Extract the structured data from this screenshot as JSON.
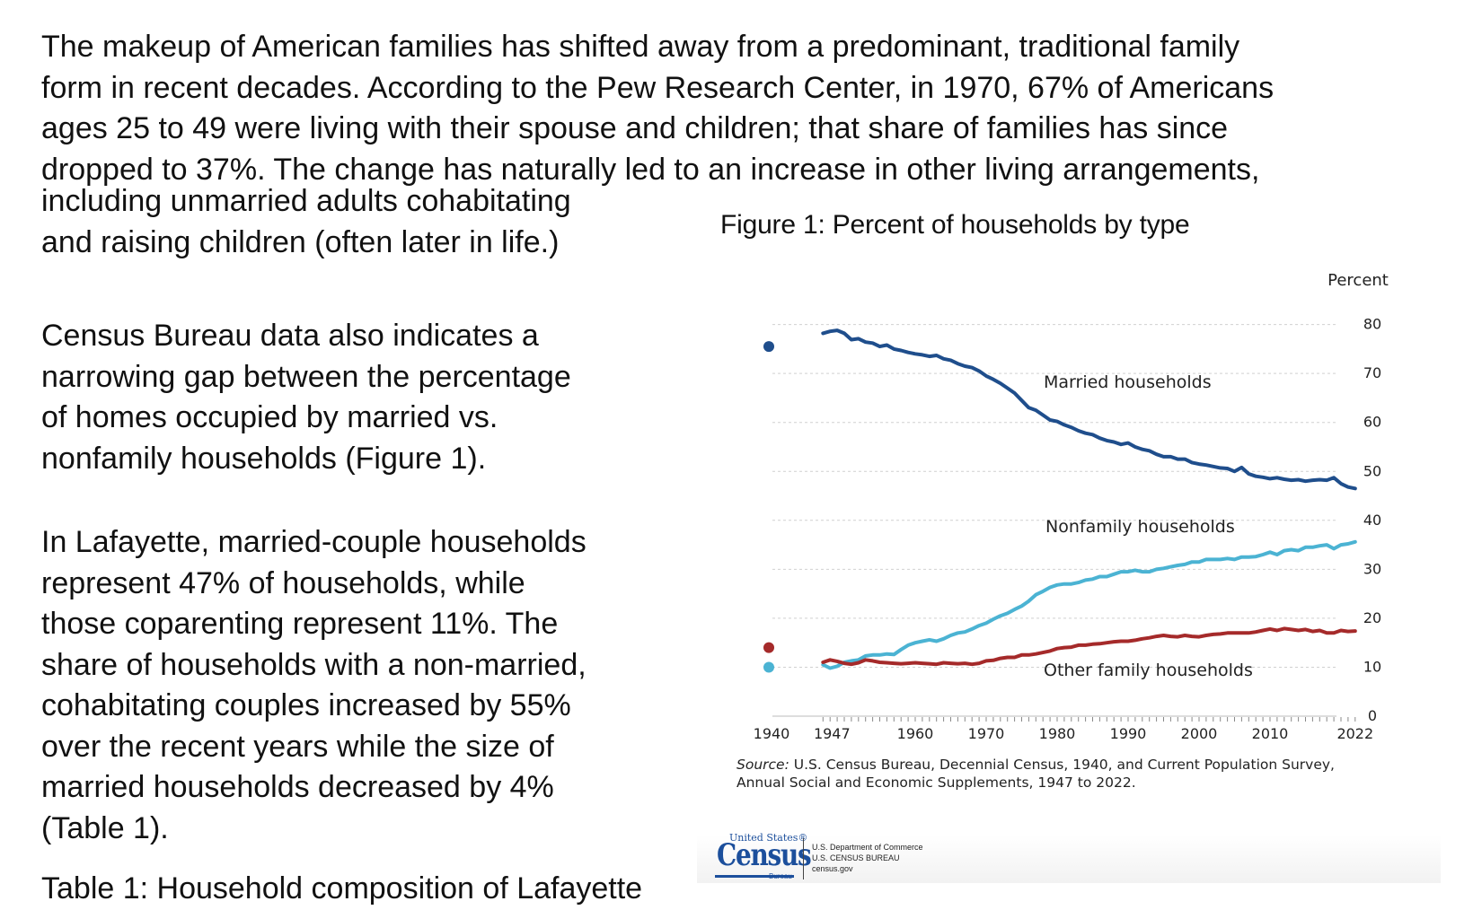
{
  "intro_lines": [
    "The makeup of American families has shifted away from a predominant, traditional family",
    "form in recent decades. According to the Pew Research Center, in 1970, 67% of Americans",
    "ages 25 to 49 were living with their spouse and children; that share of families has since",
    "dropped to 37%. The change has naturally led to an increase in other living arrangements,"
  ],
  "para1_lines": [
    "including unmarried adults cohabitating",
    "and raising children (often later in life.)"
  ],
  "para2_lines": [
    "Census Bureau data also indicates a",
    "narrowing gap between the percentage",
    "of homes occupied by married vs.",
    "nonfamily households (Figure 1)."
  ],
  "para3_lines": [
    "In Lafayette, married-couple households",
    "represent 47% of households, while",
    "those coparenting represent 11%. The",
    "share of households with a non-married,",
    "cohabitating couples increased by 55%",
    "over the recent years while the size of",
    "married households decreased by 4%",
    "(Table 1)."
  ],
  "cut_line": "Table 1: Household composition of Lafayette",
  "figure": {
    "title": "Figure 1: Percent of households by type",
    "source_label": "Source:",
    "source_text": " U.S. Census Bureau, Decennial Census, 1940, and Current Population Survey, Annual Social and Economic Supplements, 1947 to 2022.",
    "logo": {
      "top_text": "United States®",
      "word": "Census",
      "bureau": "Bureau",
      "dept_lines": [
        "U.S. Department of Commerce",
        "U.S. CENSUS BUREAU",
        "census.gov"
      ]
    }
  },
  "chart_data": {
    "type": "line",
    "ylabel": "Percent",
    "ylim": [
      0,
      80
    ],
    "y_ticks": [
      0,
      10,
      20,
      30,
      40,
      50,
      60,
      70,
      80
    ],
    "x_tick_labels": [
      "1940",
      "1947",
      "1960",
      "1970",
      "1980",
      "1990",
      "2000",
      "2010",
      "2022"
    ],
    "grid": true,
    "colors": {
      "married": "#1f4e8c",
      "nonfamily": "#4bb3d3",
      "other": "#a52a2a"
    },
    "series": [
      {
        "name": "Married households",
        "color": "#1f4e8c",
        "point_1940": 75.5,
        "x": [
          1947,
          1948,
          1949,
          1950,
          1951,
          1952,
          1953,
          1954,
          1955,
          1956,
          1957,
          1958,
          1959,
          1960,
          1961,
          1962,
          1963,
          1964,
          1965,
          1966,
          1967,
          1968,
          1969,
          1970,
          1971,
          1972,
          1973,
          1974,
          1975,
          1976,
          1977,
          1978,
          1979,
          1980,
          1981,
          1982,
          1983,
          1984,
          1985,
          1986,
          1987,
          1988,
          1989,
          1990,
          1991,
          1992,
          1993,
          1994,
          1995,
          1996,
          1997,
          1998,
          1999,
          2000,
          2001,
          2002,
          2003,
          2004,
          2005,
          2006,
          2007,
          2008,
          2009,
          2010,
          2011,
          2012,
          2013,
          2014,
          2015,
          2016,
          2017,
          2018,
          2019,
          2020,
          2021,
          2022
        ],
        "values": [
          78.2,
          78.6,
          78.8,
          78.2,
          76.9,
          77.1,
          76.4,
          76.2,
          75.5,
          75.8,
          75.0,
          74.7,
          74.3,
          74.0,
          73.8,
          73.5,
          73.7,
          73.0,
          72.7,
          72.0,
          71.5,
          71.2,
          70.5,
          69.5,
          68.8,
          68.0,
          67.0,
          66.0,
          64.5,
          63.0,
          62.5,
          61.5,
          60.5,
          60.2,
          59.5,
          59.0,
          58.3,
          57.8,
          57.5,
          56.8,
          56.3,
          56.0,
          55.5,
          55.8,
          55.0,
          54.5,
          54.2,
          53.5,
          53.0,
          53.0,
          52.5,
          52.5,
          51.8,
          51.5,
          51.3,
          51.0,
          50.7,
          50.6,
          50.0,
          50.8,
          49.5,
          49.0,
          48.8,
          48.5,
          48.7,
          48.4,
          48.2,
          48.3,
          48.0,
          48.2,
          48.3,
          48.2,
          48.7,
          47.5,
          46.8,
          46.5
        ]
      },
      {
        "name": "Nonfamily households",
        "color": "#4bb3d3",
        "point_1940": 10.0,
        "x": [
          1947,
          1948,
          1949,
          1950,
          1951,
          1952,
          1953,
          1954,
          1955,
          1956,
          1957,
          1958,
          1959,
          1960,
          1961,
          1962,
          1963,
          1964,
          1965,
          1966,
          1967,
          1968,
          1969,
          1970,
          1971,
          1972,
          1973,
          1974,
          1975,
          1976,
          1977,
          1978,
          1979,
          1980,
          1981,
          1982,
          1983,
          1984,
          1985,
          1986,
          1987,
          1988,
          1989,
          1990,
          1991,
          1992,
          1993,
          1994,
          1995,
          1996,
          1997,
          1998,
          1999,
          2000,
          2001,
          2002,
          2003,
          2004,
          2005,
          2006,
          2007,
          2008,
          2009,
          2010,
          2011,
          2012,
          2013,
          2014,
          2015,
          2016,
          2017,
          2018,
          2019,
          2020,
          2021,
          2022
        ],
        "values": [
          10.5,
          9.8,
          10.2,
          11.0,
          11.3,
          11.5,
          12.3,
          12.5,
          12.5,
          12.7,
          12.6,
          13.6,
          14.5,
          15.0,
          15.3,
          15.6,
          15.3,
          15.8,
          16.5,
          17.0,
          17.2,
          17.8,
          18.5,
          19.0,
          19.8,
          20.5,
          21.0,
          21.8,
          22.5,
          23.5,
          24.8,
          25.5,
          26.3,
          26.8,
          27.0,
          27.0,
          27.3,
          27.8,
          28.0,
          28.5,
          28.5,
          29.0,
          29.5,
          29.5,
          29.8,
          29.5,
          29.5,
          30.0,
          30.2,
          30.5,
          30.8,
          31.0,
          31.5,
          31.5,
          32.0,
          32.0,
          32.0,
          32.2,
          32.0,
          32.5,
          32.5,
          32.6,
          33.0,
          33.5,
          33.0,
          33.8,
          34.0,
          33.8,
          34.5,
          34.5,
          34.8,
          35.0,
          34.2,
          35.0,
          35.2,
          35.6
        ]
      },
      {
        "name": "Other family households",
        "color": "#a52a2a",
        "point_1940": 14.0,
        "x": [
          1947,
          1948,
          1949,
          1950,
          1951,
          1952,
          1953,
          1954,
          1955,
          1956,
          1957,
          1958,
          1959,
          1960,
          1961,
          1962,
          1963,
          1964,
          1965,
          1966,
          1967,
          1968,
          1969,
          1970,
          1971,
          1972,
          1973,
          1974,
          1975,
          1976,
          1977,
          1978,
          1979,
          1980,
          1981,
          1982,
          1983,
          1984,
          1985,
          1986,
          1987,
          1988,
          1989,
          1990,
          1991,
          1992,
          1993,
          1994,
          1995,
          1996,
          1997,
          1998,
          1999,
          2000,
          2001,
          2002,
          2003,
          2004,
          2005,
          2006,
          2007,
          2008,
          2009,
          2010,
          2011,
          2012,
          2013,
          2014,
          2015,
          2016,
          2017,
          2018,
          2019,
          2020,
          2021,
          2022
        ],
        "values": [
          11.0,
          11.5,
          11.2,
          10.8,
          10.6,
          10.9,
          11.5,
          11.3,
          11.0,
          10.9,
          10.8,
          10.7,
          10.8,
          10.9,
          10.8,
          10.7,
          10.6,
          10.9,
          10.8,
          10.7,
          10.8,
          10.6,
          10.8,
          11.3,
          11.4,
          11.8,
          12.0,
          12.0,
          12.5,
          12.5,
          12.7,
          13.0,
          13.3,
          13.8,
          14.0,
          14.1,
          14.5,
          14.5,
          14.7,
          14.8,
          15.0,
          15.2,
          15.3,
          15.3,
          15.5,
          15.8,
          16.0,
          16.3,
          16.5,
          16.3,
          16.2,
          16.5,
          16.3,
          16.2,
          16.5,
          16.7,
          16.8,
          17.0,
          17.0,
          17.0,
          17.0,
          17.2,
          17.5,
          17.8,
          17.5,
          17.9,
          17.7,
          17.5,
          17.7,
          17.3,
          17.5,
          17.0,
          17.0,
          17.5,
          17.3,
          17.4
        ]
      }
    ]
  }
}
